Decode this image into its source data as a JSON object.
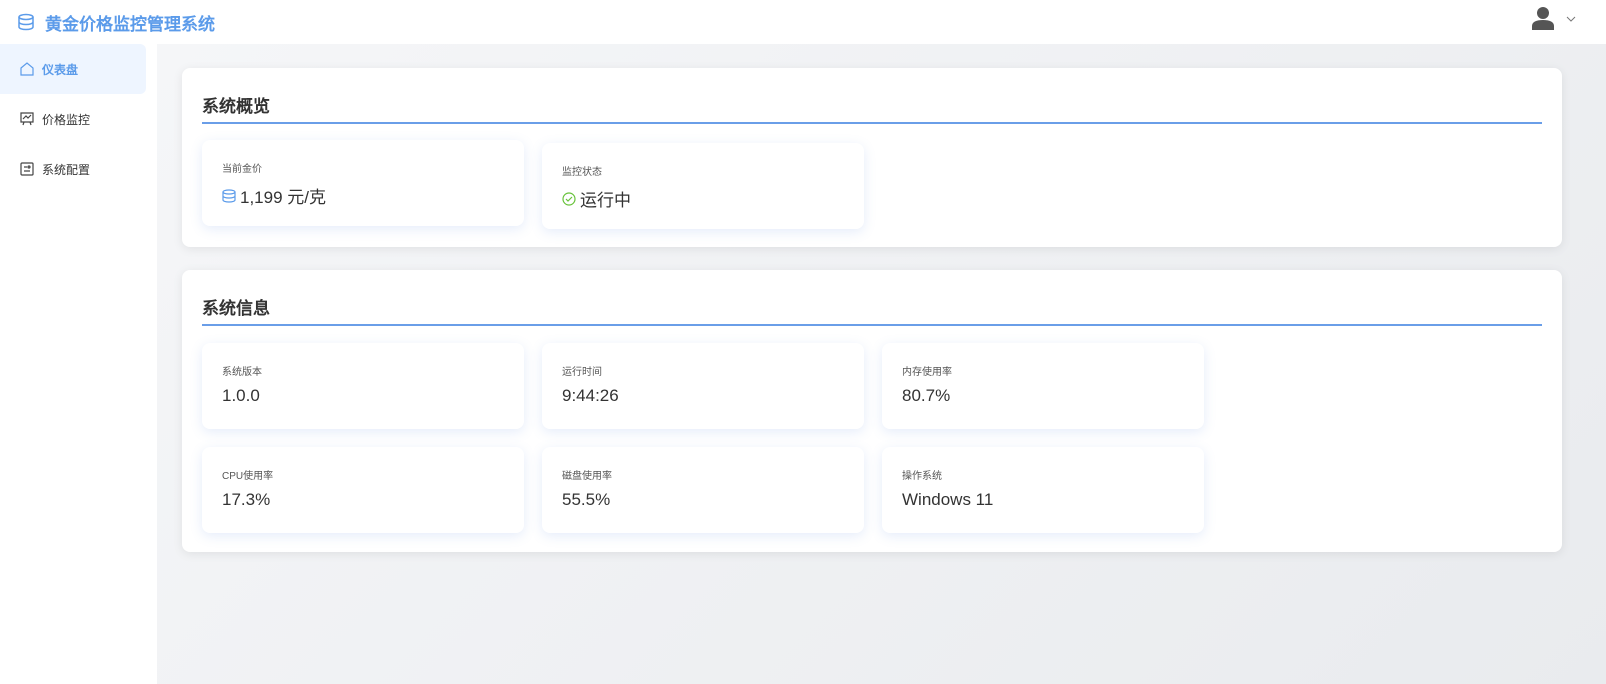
{
  "header": {
    "title": "黄金价格监控管理系统",
    "user_icon": "user-icon",
    "accent": "#5b9bea"
  },
  "sidebar": {
    "items": [
      {
        "label": "仪表盘",
        "icon": "home-icon",
        "active": true
      },
      {
        "label": "价格监控",
        "icon": "chart-board-icon"
      },
      {
        "label": "系统配置",
        "icon": "settings-panel-icon"
      }
    ]
  },
  "overview": {
    "title": "系统概览",
    "cards": [
      {
        "label": "当前金价",
        "value": "1,199 元/克",
        "icon": "coins-icon"
      },
      {
        "label": "监控状态",
        "value": "运行中",
        "icon": "check-circle-icon",
        "icon_color": "#67c23a"
      }
    ]
  },
  "info": {
    "title": "系统信息",
    "cards": [
      {
        "label": "系统版本",
        "value": "1.0.0"
      },
      {
        "label": "运行时间",
        "value": "9:44:26"
      },
      {
        "label": "内存使用率",
        "value": "80.7%"
      },
      {
        "label": "CPU使用率",
        "value": "17.3%"
      },
      {
        "label": "磁盘使用率",
        "value": "55.5%"
      },
      {
        "label": "操作系统",
        "value": "Windows 11"
      }
    ]
  }
}
